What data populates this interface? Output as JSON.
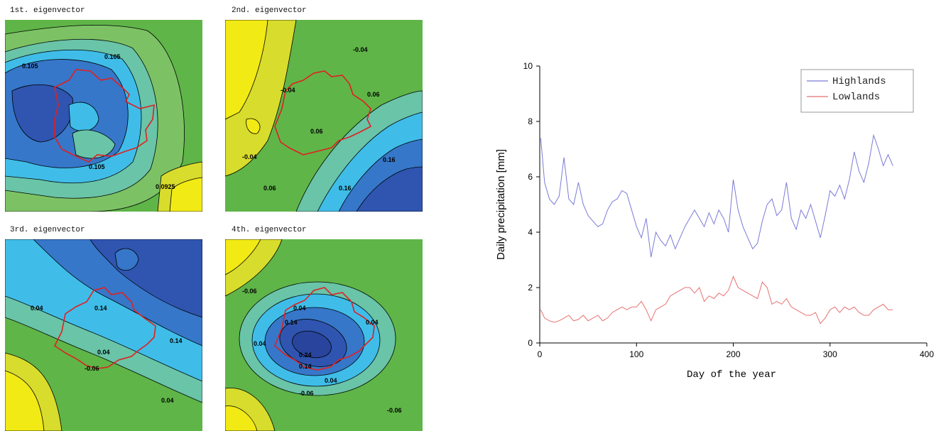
{
  "maps": [
    {
      "title": "1st. eigenvector",
      "labels": [
        "0.105",
        "0.105",
        "0.105",
        "0.0925"
      ]
    },
    {
      "title": "2nd. eigenvector",
      "labels": [
        "-0.04",
        "-0.04",
        "-0.04",
        "0.06",
        "0.06",
        "0.06",
        "0.16",
        "0.16"
      ]
    },
    {
      "title": "3rd. eigenvector",
      "labels": [
        "0.04",
        "0.14",
        "0.14",
        "0.04",
        "-0.06",
        "0.04"
      ]
    },
    {
      "title": "4th. eigenvector",
      "labels": [
        "-0.06",
        "0.04",
        "0.14",
        "0.04",
        "0.24",
        "0.14",
        "0.04",
        "-0.06",
        "-0.06",
        "0.04"
      ]
    }
  ],
  "chart_data": {
    "type": "line",
    "xlabel": "Day of the year",
    "ylabel": "Daily precipitation [mm]",
    "xlim": [
      0,
      400
    ],
    "ylim": [
      0,
      10
    ],
    "xticks": [
      "0",
      "100",
      "200",
      "300",
      "400"
    ],
    "yticks": [
      "0",
      "2",
      "4",
      "6",
      "8",
      "10"
    ],
    "legend_position": "top-right",
    "series": [
      {
        "name": "Highlands",
        "color": "#7a7ad8",
        "x": [
          1,
          5,
          10,
          15,
          20,
          25,
          30,
          35,
          40,
          45,
          50,
          55,
          60,
          65,
          70,
          75,
          80,
          85,
          90,
          95,
          100,
          105,
          110,
          115,
          120,
          125,
          130,
          135,
          140,
          145,
          150,
          155,
          160,
          165,
          170,
          175,
          180,
          185,
          190,
          195,
          200,
          205,
          210,
          215,
          220,
          225,
          230,
          235,
          240,
          245,
          250,
          255,
          260,
          265,
          270,
          275,
          280,
          285,
          290,
          295,
          300,
          305,
          310,
          315,
          320,
          325,
          330,
          335,
          340,
          345,
          350,
          355,
          360,
          365
        ],
        "y": [
          7.4,
          5.8,
          5.2,
          5.0,
          5.3,
          6.7,
          5.2,
          5.0,
          5.8,
          5.0,
          4.6,
          4.4,
          4.2,
          4.3,
          4.8,
          5.1,
          5.2,
          5.5,
          5.4,
          4.8,
          4.2,
          3.8,
          4.5,
          3.1,
          4.0,
          3.7,
          3.5,
          3.9,
          3.4,
          3.8,
          4.2,
          4.5,
          4.8,
          4.5,
          4.2,
          4.7,
          4.3,
          4.8,
          4.5,
          4.0,
          5.9,
          4.8,
          4.2,
          3.8,
          3.4,
          3.6,
          4.4,
          5.0,
          5.2,
          4.6,
          4.8,
          5.8,
          4.5,
          4.1,
          4.8,
          4.5,
          5.0,
          4.4,
          3.8,
          4.6,
          5.5,
          5.3,
          5.7,
          5.2,
          5.9,
          6.9,
          6.2,
          5.8,
          6.5,
          7.5,
          7.0,
          6.4,
          6.8,
          6.4
        ]
      },
      {
        "name": "Lowlands",
        "color": "#e87070",
        "x": [
          1,
          5,
          10,
          15,
          20,
          25,
          30,
          35,
          40,
          45,
          50,
          55,
          60,
          65,
          70,
          75,
          80,
          85,
          90,
          95,
          100,
          105,
          110,
          115,
          120,
          125,
          130,
          135,
          140,
          145,
          150,
          155,
          160,
          165,
          170,
          175,
          180,
          185,
          190,
          195,
          200,
          205,
          210,
          215,
          220,
          225,
          230,
          235,
          240,
          245,
          250,
          255,
          260,
          265,
          270,
          275,
          280,
          285,
          290,
          295,
          300,
          305,
          310,
          315,
          320,
          325,
          330,
          335,
          340,
          345,
          350,
          355,
          360,
          365
        ],
        "y": [
          1.2,
          0.9,
          0.8,
          0.75,
          0.8,
          0.9,
          1.0,
          0.8,
          0.85,
          1.0,
          0.8,
          0.9,
          1.0,
          0.8,
          0.9,
          1.1,
          1.2,
          1.3,
          1.2,
          1.3,
          1.3,
          1.5,
          1.2,
          0.8,
          1.2,
          1.3,
          1.4,
          1.7,
          1.8,
          1.9,
          2.0,
          2.0,
          1.8,
          2.0,
          1.5,
          1.7,
          1.6,
          1.8,
          1.7,
          1.9,
          2.4,
          2.0,
          1.9,
          1.8,
          1.7,
          1.6,
          2.2,
          2.0,
          1.4,
          1.5,
          1.4,
          1.6,
          1.3,
          1.2,
          1.1,
          1.0,
          1.0,
          1.1,
          0.7,
          0.9,
          1.2,
          1.3,
          1.1,
          1.3,
          1.2,
          1.3,
          1.1,
          1.0,
          1.0,
          1.2,
          1.3,
          1.4,
          1.2,
          1.2
        ]
      }
    ]
  }
}
